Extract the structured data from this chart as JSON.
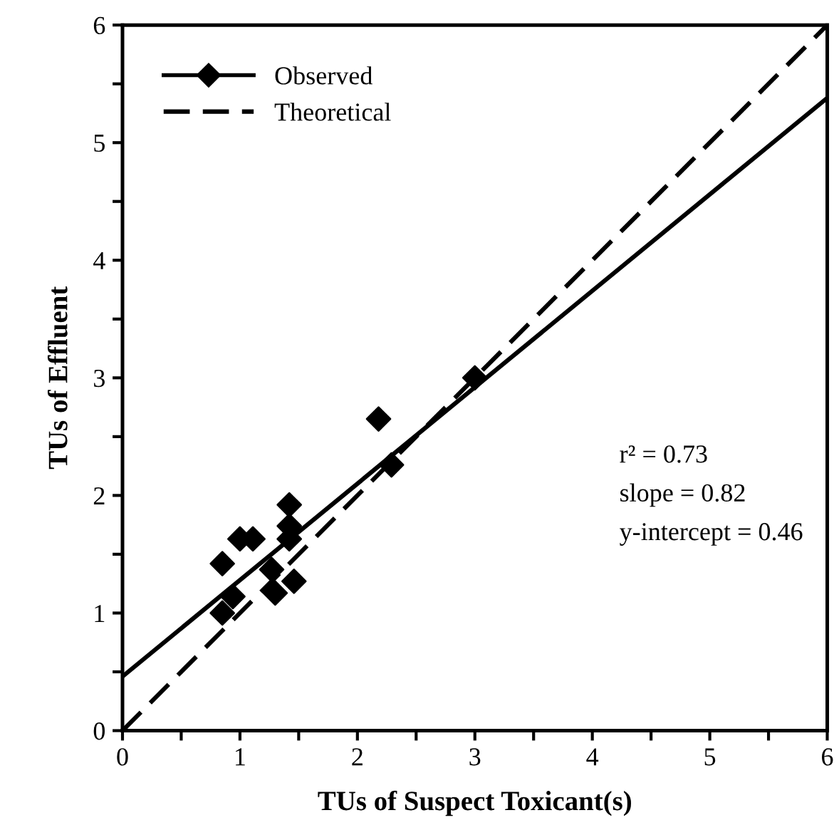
{
  "chart_data": {
    "type": "scatter",
    "xlabel": "TUs of Suspect Toxicant(s)",
    "ylabel": "TUs of Effluent",
    "xlim": [
      0,
      6
    ],
    "ylim": [
      0,
      6
    ],
    "xticks": [
      0,
      {
        "value": 0.5,
        "label": null
      },
      1,
      {
        "value": 1.5,
        "label": null
      },
      2,
      {
        "value": 2.5,
        "label": null
      },
      3,
      {
        "value": 3.5,
        "label": null
      },
      4,
      {
        "value": 4.5,
        "label": null
      },
      5,
      {
        "value": 5.5,
        "label": null
      },
      6
    ],
    "yticks": [
      0,
      {
        "value": 0.5,
        "label": null
      },
      1,
      {
        "value": 1.5,
        "label": null
      },
      2,
      {
        "value": 2.5,
        "label": null
      },
      3,
      {
        "value": 3.5,
        "label": null
      },
      4,
      {
        "value": 4.5,
        "label": null
      },
      5,
      {
        "value": 5.5,
        "label": null
      },
      6
    ],
    "grid": false,
    "legend": "top left",
    "series": [
      {
        "name": "Observed",
        "marker": "diamond",
        "line_style": "solid",
        "color": "#000000",
        "x": [
          0.85,
          0.85,
          0.94,
          1.0,
          1.11,
          1.27,
          1.3,
          1.42,
          1.42,
          1.42,
          1.46,
          2.18,
          2.29,
          3.0
        ],
        "values": [
          1.42,
          1.0,
          1.14,
          1.63,
          1.63,
          1.37,
          1.17,
          1.92,
          1.74,
          1.63,
          1.27,
          2.65,
          2.26,
          3.0
        ]
      },
      {
        "type": "line",
        "line_style": "solid",
        "color": "#000000",
        "x": [
          0,
          6
        ],
        "values": [
          0.46,
          5.38
        ]
      },
      {
        "name": "Theoretical",
        "type": "line",
        "line_style": "dashed",
        "color": "#000000",
        "x": [
          0,
          6
        ],
        "values": [
          0,
          6
        ]
      }
    ],
    "annotations": [
      "r² = 0.73",
      "slope = 0.82",
      "y-intercept = 0.46"
    ]
  }
}
